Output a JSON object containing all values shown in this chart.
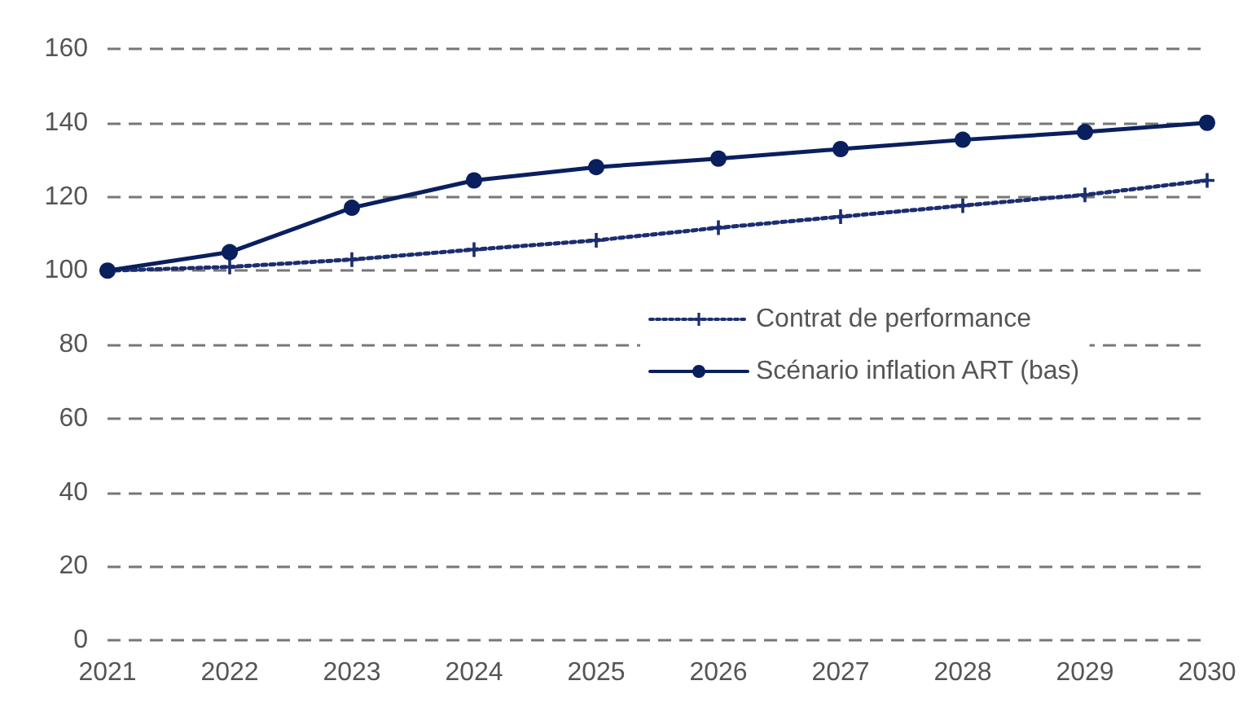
{
  "chart_data": {
    "type": "line",
    "categories": [
      "2021",
      "2022",
      "2023",
      "2024",
      "2025",
      "2026",
      "2027",
      "2028",
      "2029",
      "2030"
    ],
    "series": [
      {
        "name": "Contrat de performance",
        "color": "#1c2d70",
        "values": [
          100,
          101,
          103,
          105.7,
          108.2,
          111.6,
          114.6,
          117.6,
          120.5,
          124.4
        ],
        "marker": "cross",
        "line_style": "dotted"
      },
      {
        "name": "Scénario inflation ART (bas)",
        "color": "#0a1f5e",
        "values": [
          100,
          105,
          117,
          124.4,
          128,
          130.3,
          132.9,
          135.4,
          137.5,
          140
        ],
        "marker": "circle",
        "line_style": "solid"
      }
    ],
    "ylim": [
      0,
      160
    ],
    "yticks": [
      0,
      20,
      40,
      60,
      80,
      100,
      120,
      140,
      160
    ],
    "grid": "y",
    "legend": "right"
  }
}
